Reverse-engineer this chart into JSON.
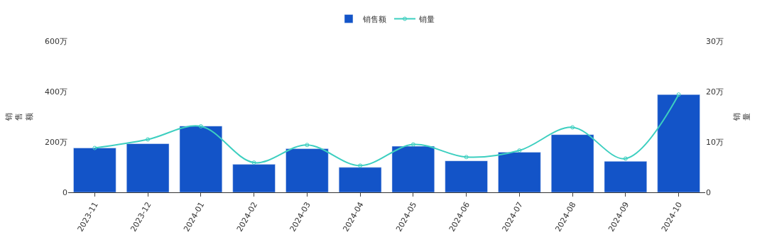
{
  "chart_data": {
    "type": "bar",
    "ylabel": "销售额",
    "y2label": "销量",
    "categories": [
      "2023-11",
      "2023-12",
      "2024-01",
      "2024-02",
      "2024-03",
      "2024-04",
      "2024-05",
      "2024-06",
      "2024-07",
      "2024-08",
      "2024-09",
      "2024-10"
    ],
    "series": [
      {
        "name": "销售额",
        "color": "#1354c8",
        "values": [
          176,
          193,
          263,
          111,
          173,
          99,
          183,
          125,
          159,
          229,
          123,
          388
        ]
      },
      {
        "name": "销量",
        "type": "line",
        "axis": "y2",
        "color": "#3dcfc0",
        "marker": "circle",
        "values": [
          8.8,
          10.5,
          13.1,
          5.9,
          9.4,
          5.3,
          9.5,
          7.0,
          8.3,
          12.9,
          6.7,
          19.4
        ]
      }
    ],
    "ylim": [
      0,
      600
    ],
    "yticks": [
      0,
      {
        "value": 200,
        "label": "200万"
      },
      {
        "value": 400,
        "label": "400万"
      },
      {
        "value": 600,
        "label": "600万"
      }
    ],
    "y2lim": [
      0,
      30
    ],
    "y2ticks": [
      0,
      {
        "value": 10,
        "label": "10万"
      },
      {
        "value": 20,
        "label": "20万"
      },
      {
        "value": 30,
        "label": "30万"
      }
    ],
    "legend": "top"
  }
}
